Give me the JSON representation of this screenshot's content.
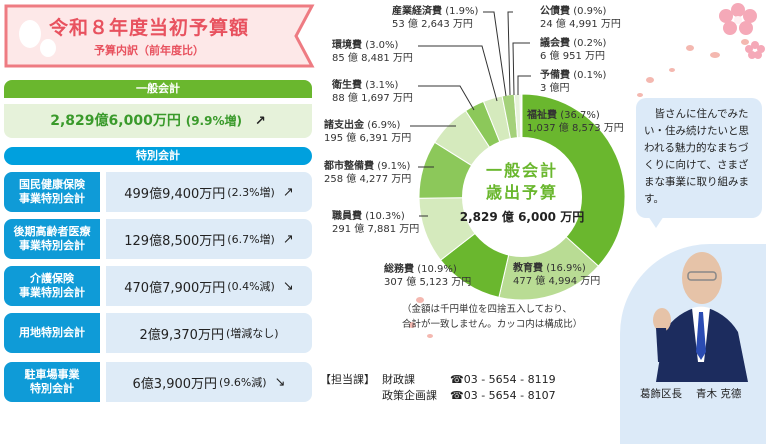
{
  "banner": {
    "title": "令和８年度当初予算額",
    "subtitle": "予算内訳（前年度比）"
  },
  "general_account": {
    "header": "一般会計",
    "amount": "2,829億6,000万円",
    "change": "(9.9%増)",
    "trend_icon": "↗"
  },
  "special_accounts": {
    "header": "特別会計",
    "items": [
      {
        "label": "国民健康保険\n事業特別会計",
        "amount": "499億9,400万円",
        "change": "(2.3%増)",
        "trend_icon": "↗"
      },
      {
        "label": "後期高齢者医療\n事業特別会計",
        "amount": "129億8,500万円",
        "change": "(6.7%増)",
        "trend_icon": "↗"
      },
      {
        "label": "介護保険\n事業特別会計",
        "amount": "470億7,900万円",
        "change": "(0.4%減)",
        "trend_icon": "↘"
      },
      {
        "label": "用地特別会計",
        "amount": "2億9,370万円",
        "change": "(増減なし)",
        "trend_icon": ""
      },
      {
        "label": "駐車場事業\n特別会計",
        "amount": "6億3,900万円",
        "change": "(9.6%減)",
        "trend_icon": "↘"
      }
    ]
  },
  "chart_data": {
    "type": "pie",
    "title": "一般会計 歳出予算",
    "total": "2,829億6,000万円",
    "categories": [
      "福祉費",
      "教育費",
      "総務費",
      "職員費",
      "都市整備費",
      "諸支出金",
      "衛生費",
      "環境費",
      "産業経済費",
      "公債費",
      "議会費",
      "予備費"
    ],
    "values": [
      36.7,
      16.9,
      10.9,
      10.3,
      9.1,
      6.9,
      3.1,
      3.0,
      1.9,
      0.9,
      0.2,
      0.1
    ],
    "amounts": [
      "1,037億8,573万円",
      "477億4,994万円",
      "307億5,123万円",
      "291億7,881万円",
      "258億4,277万円",
      "195億6,391万円",
      "88億1,697万円",
      "85億8,481万円",
      "53億2,643万円",
      "24億4,991万円",
      "6億951万円",
      "3億円"
    ],
    "colors": [
      "#6ab72e",
      "#b9dc94",
      "#6ab72e",
      "#d5eabd",
      "#8cc85a",
      "#d5eabd",
      "#8cc85a",
      "#d5eabd",
      "#a4d17a",
      "#e6f2da",
      "#cfe8b6",
      "#e6f2da"
    ],
    "unit": "%"
  },
  "center": {
    "title_line1": "一般会計",
    "title_line2": "歳出予算",
    "total": "2,829 億 6,000 万円"
  },
  "labels": {
    "fukushi": {
      "name": "福祉費",
      "pct": "(36.7%)",
      "amount": "1,037 億 8,573 万円"
    },
    "kyoiku": {
      "name": "教育費",
      "pct": "(16.9%)",
      "amount": "477 億 4,994 万円"
    },
    "somu": {
      "name": "総務費",
      "pct": "(10.9%)",
      "amount": "307 億 5,123 万円"
    },
    "shokuin": {
      "name": "職員費",
      "pct": "(10.3%)",
      "amount": "291 億 7,881 万円"
    },
    "toshi": {
      "name": "都市整備費",
      "pct": "(9.1%)",
      "amount": "258 億 4,277 万円"
    },
    "shoshishutsu": {
      "name": "諸支出金",
      "pct": "(6.9%)",
      "amount": "195 億 6,391 万円"
    },
    "eisei": {
      "name": "衛生費",
      "pct": "(3.1%)",
      "amount": "88 億 1,697 万円"
    },
    "kankyo": {
      "name": "環境費",
      "pct": "(3.0%)",
      "amount": "85 億 8,481 万円"
    },
    "sangyo": {
      "name": "産業経済費",
      "pct": "(1.9%)",
      "amount": "53 億 2,643 万円"
    },
    "kosai": {
      "name": "公債費",
      "pct": "(0.9%)",
      "amount": "24 億 4,991 万円"
    },
    "gikai": {
      "name": "議会費",
      "pct": "(0.2%)",
      "amount": "6 億 951 万円"
    },
    "yobi": {
      "name": "予備費",
      "pct": "(0.1%)",
      "amount": "3 億円"
    }
  },
  "note": {
    "line1": "（金額は千円単位を四捨五入しており、",
    "line2": "合計が一致しません。カッコ内は構成比）"
  },
  "contact": {
    "label": "【担当課】",
    "departments": [
      {
        "name": "財政課",
        "phone": "☎03 - 5654 - 8119"
      },
      {
        "name": "政策企画課",
        "phone": "☎03 - 5654 - 8107"
      }
    ]
  },
  "message": "　皆さんに住んでみたい・住み続けたいと思われる魅力的なまちづくりに向けて、さまざまな事業に取り組みます。",
  "mayor": {
    "title": "葛飾区長",
    "name": "青木 克德"
  }
}
